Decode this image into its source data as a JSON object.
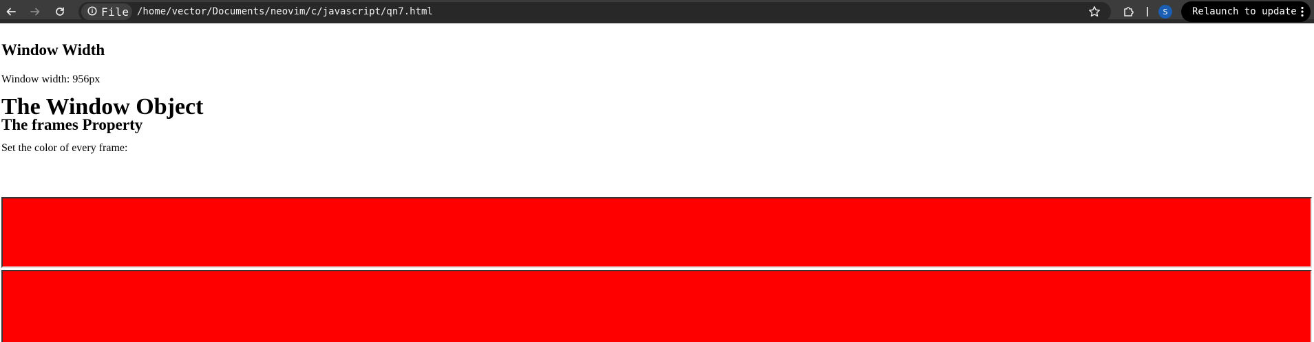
{
  "browser": {
    "chip_label": "File",
    "url": "/home/vector/Documents/neovim/c/javascript/qn7.html",
    "avatar_letter": "S",
    "relaunch_label": "Relaunch to update"
  },
  "page": {
    "heading_width": "Window Width",
    "width_text": "Window width: 956px",
    "heading_window": "The Window Object",
    "heading_frames": "The frames Property",
    "frames_text": "Set the color of every frame:",
    "frame_color": "#ff0000",
    "frame_count": 2
  },
  "colors": {
    "toolbar_bg": "#3c3c3c",
    "omnibox_bg": "#282828",
    "avatar_bg": "#1a5fb4",
    "frame_fill": "#ff0000"
  }
}
